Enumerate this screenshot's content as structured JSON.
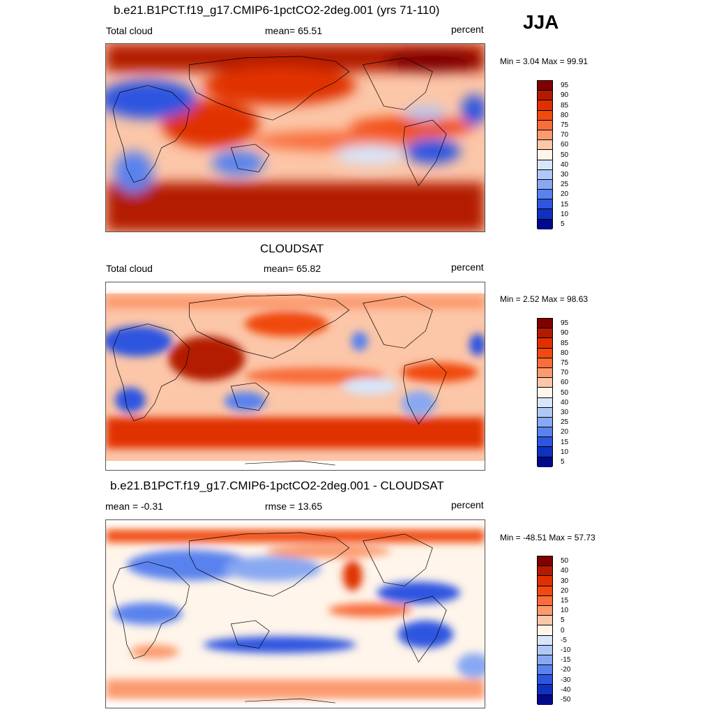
{
  "season": "JJA",
  "panels": [
    {
      "title": "b.e21.B1PCT.f19_g17.CMIP6-1pctCO2-2deg.001 (yrs 71-110)",
      "left_label": "Total cloud",
      "center_label": "mean=  65.51",
      "right_label": "percent",
      "minmax": "Min =   3.04 Max =  99.91",
      "colorbar_labels": [
        "95",
        "90",
        "85",
        "80",
        "75",
        "70",
        "60",
        "50",
        "40",
        "30",
        "25",
        "20",
        "15",
        "10",
        "5"
      ]
    },
    {
      "title": "CLOUDSAT",
      "left_label": "Total cloud",
      "center_label": "mean=  65.82",
      "right_label": "percent",
      "minmax": "Min =   2.52 Max =  98.63",
      "colorbar_labels": [
        "95",
        "90",
        "85",
        "80",
        "75",
        "70",
        "60",
        "50",
        "40",
        "30",
        "25",
        "20",
        "15",
        "10",
        "5"
      ]
    },
    {
      "title": "b.e21.B1PCT.f19_g17.CMIP6-1pctCO2-2deg.001 - CLOUDSAT",
      "left_label": "mean =  -0.31",
      "center_label": "rmse =  13.65",
      "right_label": "percent",
      "minmax": "Min = -48.51 Max =  57.73",
      "colorbar_labels": [
        "50",
        "40",
        "30",
        "20",
        "15",
        "10",
        "5",
        "0",
        "-5",
        "-10",
        "-15",
        "-20",
        "-30",
        "-40",
        "-50"
      ]
    }
  ],
  "colorbar_colors": [
    "#800000",
    "#b31a00",
    "#e03000",
    "#f04a10",
    "#f86d3a",
    "#fb9a6e",
    "#fcc6a8",
    "#fff5ea",
    "#d7e6fb",
    "#b0c8f6",
    "#88a8f2",
    "#5a82ee",
    "#2d55e0",
    "#1030c0",
    "#000a8a"
  ],
  "colors": {
    "background": "#ffffff",
    "text": "#000000",
    "coastline": "#000000"
  }
}
